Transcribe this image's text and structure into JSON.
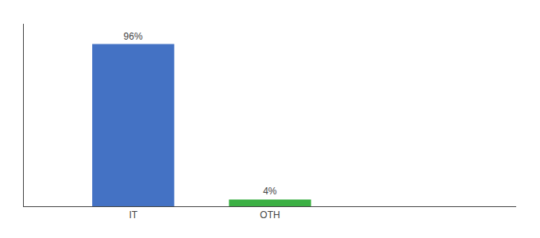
{
  "chart_data": {
    "type": "bar",
    "categories": [
      "IT",
      "OTH"
    ],
    "values": [
      96,
      4
    ],
    "value_labels": [
      "96%",
      "4%"
    ],
    "colors": [
      "#4472c4",
      "#3cb044"
    ],
    "ylim": [
      0,
      108
    ],
    "data_labels": true,
    "tick_labels": "x",
    "grid": false
  }
}
